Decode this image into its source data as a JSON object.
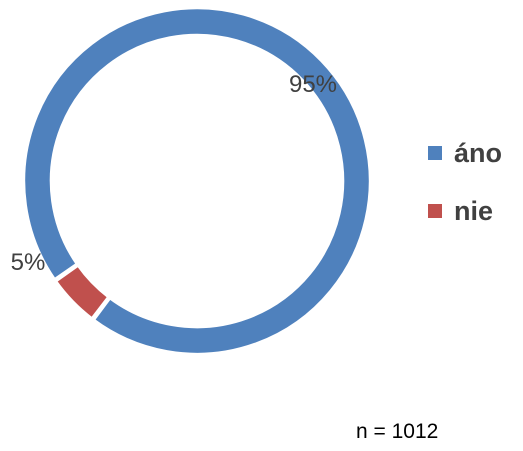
{
  "chart_data": {
    "type": "pie",
    "variant": "donut",
    "categories": [
      "áno",
      "nie"
    ],
    "values": [
      95,
      5
    ],
    "value_labels": [
      "95%",
      "5%"
    ],
    "colors": [
      "#4F81BD",
      "#C0504D"
    ],
    "legend": {
      "placement": "right",
      "entries": [
        "áno",
        "nie"
      ]
    }
  },
  "note": "n = 1012"
}
